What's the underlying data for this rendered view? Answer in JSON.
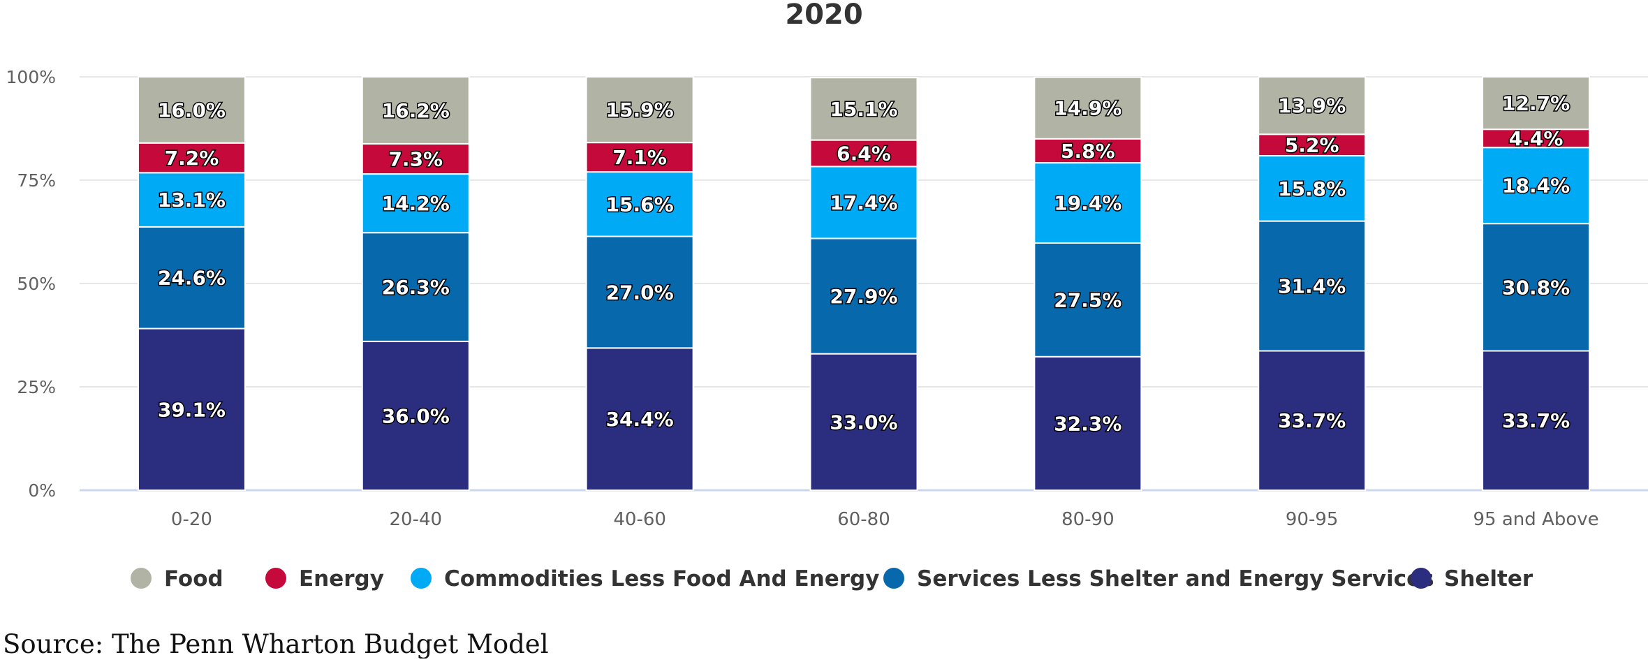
{
  "chart_data": {
    "type": "bar",
    "stacked": true,
    "title": "2020",
    "xlabel": "",
    "ylabel": "",
    "ylim": [
      0,
      100
    ],
    "y_ticks": [
      "0%",
      "25%",
      "50%",
      "75%",
      "100%"
    ],
    "categories": [
      "0-20",
      "20-40",
      "40-60",
      "60-80",
      "80-90",
      "90-95",
      "95 and Above"
    ],
    "series": [
      {
        "name": "Shelter",
        "color": "#2b2d7f",
        "values": [
          39.1,
          36.0,
          34.4,
          33.0,
          32.3,
          33.7,
          33.7
        ],
        "labels": [
          "39.1%",
          "36.0%",
          "34.4%",
          "33.0%",
          "32.3%",
          "33.7%",
          "33.7%"
        ]
      },
      {
        "name": "Services Less Shelter and Energy Services",
        "color": "#0769ab",
        "values": [
          24.6,
          26.3,
          27.0,
          27.9,
          27.5,
          31.4,
          30.8
        ],
        "labels": [
          "24.6%",
          "26.3%",
          "27.0%",
          "27.9%",
          "27.5%",
          "31.4%",
          "30.8%"
        ]
      },
      {
        "name": "Commodities Less Food And Energy",
        "color": "#00aaf4",
        "values": [
          13.1,
          14.2,
          15.6,
          17.4,
          19.4,
          15.8,
          18.4
        ],
        "labels": [
          "13.1%",
          "14.2%",
          "15.6%",
          "17.4%",
          "19.4%",
          "15.8%",
          "18.4%"
        ]
      },
      {
        "name": "Energy",
        "color": "#c5093b",
        "values": [
          7.2,
          7.3,
          7.1,
          6.4,
          5.8,
          5.2,
          4.4
        ],
        "labels": [
          "7.2%",
          "7.3%",
          "7.1%",
          "6.4%",
          "5.8%",
          "5.2%",
          "4.4%"
        ]
      },
      {
        "name": "Food",
        "color": "#b1b4a5",
        "values": [
          16.0,
          16.2,
          15.9,
          15.1,
          14.9,
          13.9,
          12.7
        ],
        "labels": [
          "16.0%",
          "16.2%",
          "15.9%",
          "15.1%",
          "14.9%",
          "13.9%",
          "12.7%"
        ]
      }
    ],
    "legend_order": [
      "Food",
      "Energy",
      "Commodities Less Food And Energy",
      "Services Less Shelter and Energy Services",
      "Shelter"
    ],
    "legend_position": "bottom",
    "grid": true
  },
  "source_note": "Source: The Penn Wharton Budget Model"
}
